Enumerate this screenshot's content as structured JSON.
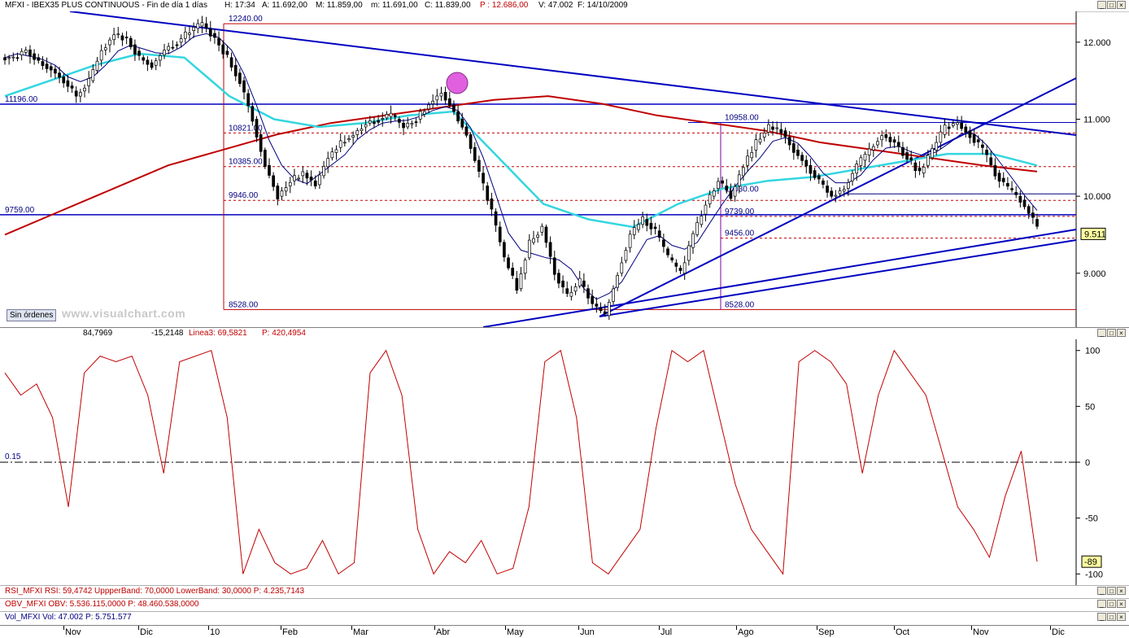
{
  "colors": {
    "candle": "#000000",
    "ma_red": "#c00000",
    "ma_cyan": "#33d6e0",
    "ma_navy": "#000080",
    "trend": "#0000c0",
    "rsi": "#c00000",
    "circle": "#e040e0"
  },
  "price_pane": {
    "title": {
      "symbol": "MFXI - IBEX35 PLUS CONTINUOUS - Fin de día 1 días",
      "h": "H: 17:34",
      "a": "A: 11.692,00",
      "m": "M: 11.859,00",
      "mi": "m: 11.691,00",
      "c": "C: 11.839,00",
      "p": "P : 12.686,00",
      "v": "V: 47.002",
      "f": "F: 14/10/2009"
    },
    "yaxis": [
      "12.000",
      "11.000",
      "10.000",
      "9.000"
    ],
    "last_value": "9.511",
    "levels": [
      {
        "label": "12240.00"
      },
      {
        "label": "11196.00"
      },
      {
        "label": "10821.00"
      },
      {
        "label": "10385.00"
      },
      {
        "label": "9946.00"
      },
      {
        "label": "9759.00"
      },
      {
        "label": "8528.00"
      },
      {
        "label": "10958.00"
      },
      {
        "label": "10030.00"
      },
      {
        "label": "9739.00"
      },
      {
        "label": "9456.00"
      },
      {
        "label": "8528.00"
      }
    ],
    "no_orders": "Sin órdenes",
    "watermark": "www.visualchart.com"
  },
  "indicator_pane": {
    "header": {
      "v1": "84,7969",
      "v2": "-15,2148",
      "v3": "Linea3: 69,5821",
      "v4": "P: 420,4954"
    },
    "yaxis": [
      "100",
      "50",
      "0",
      "-50",
      "-100"
    ],
    "zero_label": "0.15",
    "last_value": "-89"
  },
  "strips": {
    "rsi": "RSI_MFXI  RSI: 59,4742  UppperBand: 70,0000  LowerBand: 30,0000  P: 4.235,7143",
    "obv": "OBV_MFXI  OBV: 5.536.115,0000  P: 48.460.538,0000",
    "vol": "Vol_MFXI  Vol: 47.002  P: 5.751.577"
  },
  "xaxis": [
    "Nov",
    "Dic",
    "10",
    "Feb",
    "Mar",
    "Abr",
    "May",
    "Jun",
    "Jul",
    "Ago",
    "Sep",
    "Oct",
    "Nov",
    "Dic"
  ],
  "chart_data": [
    {
      "type": "candlestick",
      "series": [
        {
          "values": [
            11800,
            11900,
            11750,
            11650,
            11500,
            11300,
            11500,
            11900,
            12100,
            12050,
            11800,
            11700,
            11900,
            12000,
            12150,
            12240,
            12050,
            11800,
            11500,
            11000,
            10400,
            10000,
            10200,
            10300,
            10150,
            10500,
            10700,
            10800,
            10950,
            11000,
            11050,
            10900,
            11000,
            11200,
            11350,
            11100,
            10800,
            10300,
            9800,
            9200,
            8800,
            9400,
            9600,
            9000,
            8700,
            8900,
            8600,
            8450,
            9000,
            9500,
            9700,
            9550,
            9200,
            9000,
            9500,
            9900,
            10200,
            10000,
            10400,
            10700,
            10900,
            10850,
            10600,
            10400,
            10200,
            10000,
            10100,
            10400,
            10600,
            10800,
            10700,
            10500,
            10300,
            10600,
            10900,
            10950,
            10800,
            10600,
            10300,
            10100,
            9950,
            9700,
            9511
          ]
        },
        {
          "name": "red moving average",
          "values": [
            9500,
            9800,
            10100,
            10400,
            10600,
            10800,
            10950,
            11050,
            11150,
            11250,
            11300,
            11200,
            11050,
            10950,
            10850,
            10700,
            10600,
            10500,
            10400,
            10320
          ]
        },
        {
          "name": "cyan moving average",
          "values": [
            11300,
            11500,
            11700,
            11850,
            11800,
            11300,
            11000,
            10900,
            10950,
            11050,
            11100,
            10500,
            9900,
            9700,
            9600,
            9900,
            10100,
            10200,
            10250,
            10350,
            10450,
            10550,
            10550,
            10400
          ]
        }
      ],
      "ylim": [
        8300,
        12400
      ]
    },
    {
      "type": "line",
      "series": [
        {
          "name": "Linea3",
          "values": [
            80,
            60,
            70,
            40,
            -40,
            80,
            95,
            90,
            95,
            60,
            -10,
            90,
            95,
            100,
            40,
            -100,
            -60,
            -90,
            -100,
            -95,
            -70,
            -100,
            -90,
            80,
            100,
            60,
            -60,
            -100,
            -80,
            -90,
            -70,
            -100,
            -95,
            -40,
            90,
            100,
            40,
            -90,
            -100,
            -80,
            -60,
            30,
            100,
            90,
            100,
            40,
            -20,
            -60,
            -80,
            -100,
            90,
            100,
            90,
            70,
            -10,
            60,
            100,
            80,
            60,
            10,
            -40,
            -60,
            -85,
            -30,
            10,
            -89
          ]
        }
      ],
      "ylim": [
        -110,
        110
      ]
    }
  ]
}
